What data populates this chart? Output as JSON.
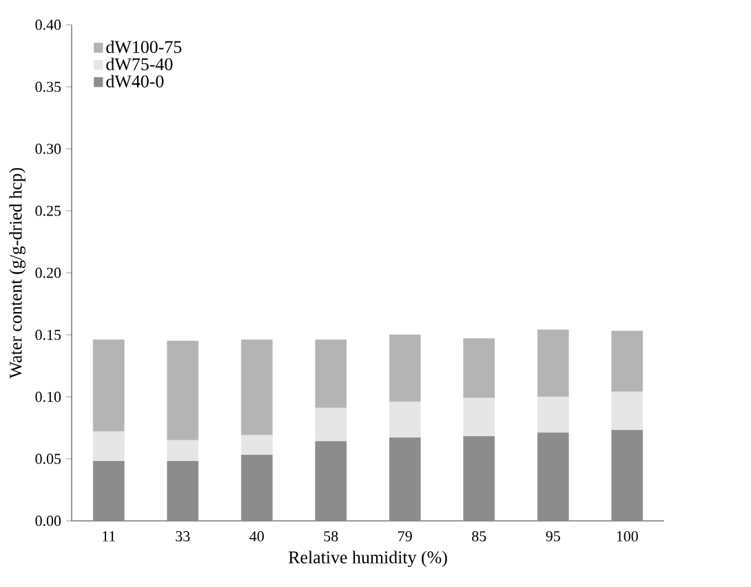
{
  "chart_data": {
    "type": "bar",
    "stacked": true,
    "xlabel": "Relative humidity (%)",
    "ylabel": "Water content (g/g-dried hcp)",
    "categories": [
      "11",
      "33",
      "40",
      "58",
      "79",
      "85",
      "95",
      "100"
    ],
    "series": [
      {
        "name": "dW40-0",
        "color": "#8c8c8c",
        "values": [
          0.048,
          0.048,
          0.053,
          0.064,
          0.067,
          0.068,
          0.071,
          0.073
        ]
      },
      {
        "name": "dW75-40",
        "color": "#e6e6e6",
        "values": [
          0.024,
          0.017,
          0.016,
          0.027,
          0.029,
          0.031,
          0.029,
          0.031
        ]
      },
      {
        "name": "dW100-75",
        "color": "#b4b4b4",
        "values": [
          0.074,
          0.08,
          0.077,
          0.055,
          0.054,
          0.048,
          0.054,
          0.049
        ]
      }
    ],
    "ylim": [
      0,
      0.4
    ],
    "yticks": [
      {
        "value": 0,
        "label": "0.00"
      },
      {
        "value": 0.05,
        "label": "0.05"
      },
      {
        "value": 0.1,
        "label": "0.10"
      },
      {
        "value": 0.15,
        "label": "0.15"
      },
      {
        "value": 0.2,
        "label": "0.20"
      },
      {
        "value": 0.25,
        "label": "0.25"
      },
      {
        "value": 0.3,
        "label": "0.30"
      },
      {
        "value": 0.35,
        "label": "0.35"
      },
      {
        "value": 0.4,
        "label": "0.40"
      }
    ],
    "grid": false,
    "legend": "top left"
  }
}
